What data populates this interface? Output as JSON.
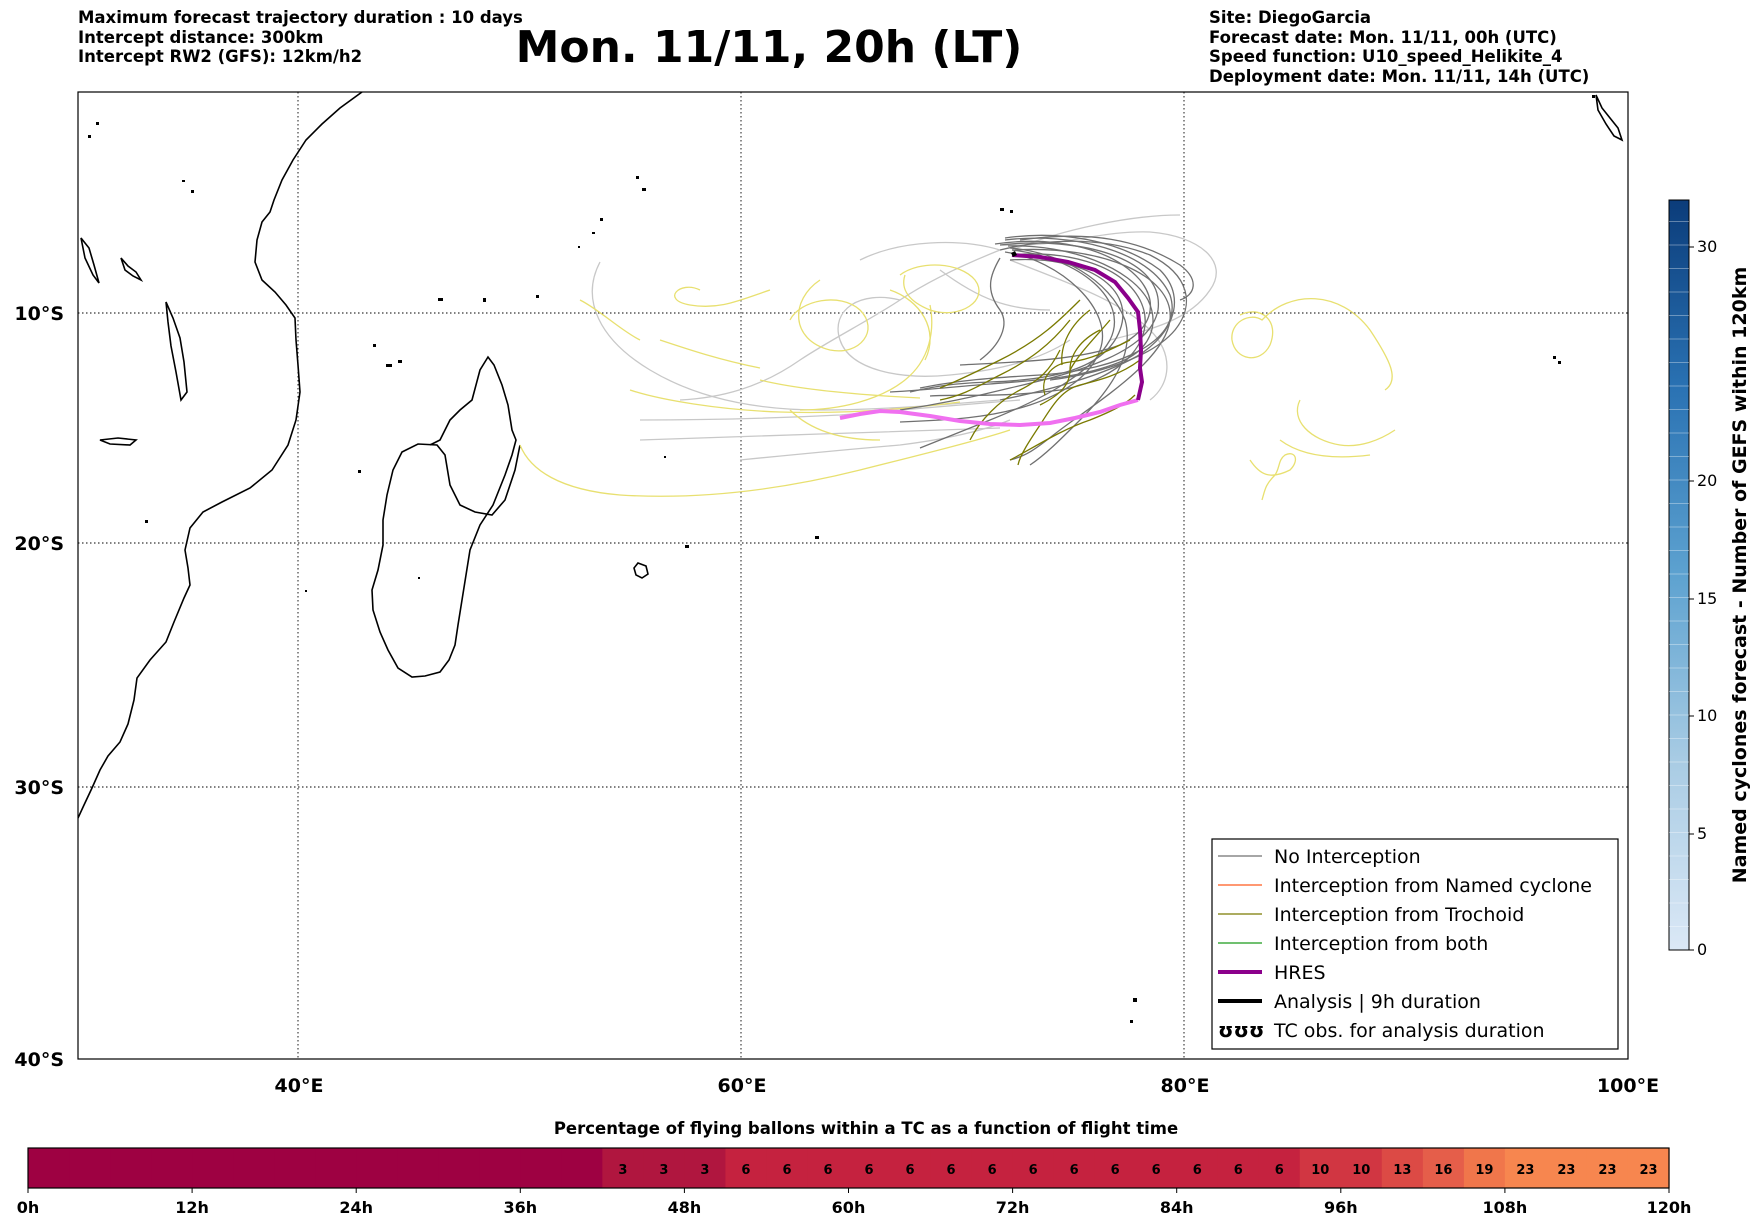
{
  "header": {
    "left_lines": [
      "Maximum forecast trajectory duration : 10 days",
      "Intercept distance: 300km",
      "Intercept RW2 (GFS):  12km/h2"
    ],
    "title": "Mon. 11/11, 20h (LT)",
    "right_lines": [
      "Site: DiegoGarcia",
      "Forecast date: Mon. 11/11, 00h (UTC)",
      "Speed function: U10_speed_Helikite_4",
      "Deployment date: Mon. 11/11, 14h (UTC)"
    ]
  },
  "map": {
    "lat_labels": [
      "10°S",
      "20°S",
      "30°S",
      "40°S"
    ],
    "lon_labels": [
      "40°E",
      "60°E",
      "80°E",
      "100°E"
    ],
    "colors": {
      "no_interception": "#707070",
      "named_cyclone": "#ff5a1f",
      "trochoid": "#7a7a00",
      "both": "#1a9a1a",
      "hres": "#8b008b",
      "hres_tail": "#f070f0",
      "analysis": "#000000",
      "yellow_members": "#e8e070",
      "light_members": "#c8c8c8"
    }
  },
  "legend": {
    "items": [
      {
        "label": "No Interception",
        "icon": "thin-gray-line"
      },
      {
        "label": "Interception from Named cyclone",
        "icon": "thin-orange-line"
      },
      {
        "label": "Interception from Trochoid",
        "icon": "thin-olive-line"
      },
      {
        "label": "Interception from both",
        "icon": "thin-green-line"
      },
      {
        "label": "HRES",
        "icon": "thick-purple-line"
      },
      {
        "label": "Analysis | 9h duration",
        "icon": "thick-black-line"
      },
      {
        "label": "TC obs. for analysis duration",
        "icon": "cyclone-symbols-icon"
      }
    ],
    "tc_symbol": "ʊʊʊ"
  },
  "colorbar": {
    "label": "Named cyclones forecast - Number of GEFS within 120km",
    "ticks": [
      "0",
      "5",
      "10",
      "15",
      "20",
      "30"
    ]
  },
  "bottom_bar": {
    "title": "Percentage of flying ballons within a TC as a function of flight time",
    "values": [
      "",
      "",
      "",
      "",
      "",
      "",
      "",
      "",
      "",
      "",
      "",
      "",
      "",
      "",
      "3",
      "3",
      "3",
      "6",
      "6",
      "6",
      "6",
      "6",
      "6",
      "6",
      "6",
      "6",
      "6",
      "6",
      "6",
      "6",
      "6",
      "10",
      "10",
      "13",
      "16",
      "19",
      "23",
      "23",
      "23",
      "23"
    ],
    "time_labels": [
      "0h",
      "12h",
      "24h",
      "36h",
      "48h",
      "60h",
      "72h",
      "84h",
      "96h",
      "108h",
      "120h"
    ]
  }
}
